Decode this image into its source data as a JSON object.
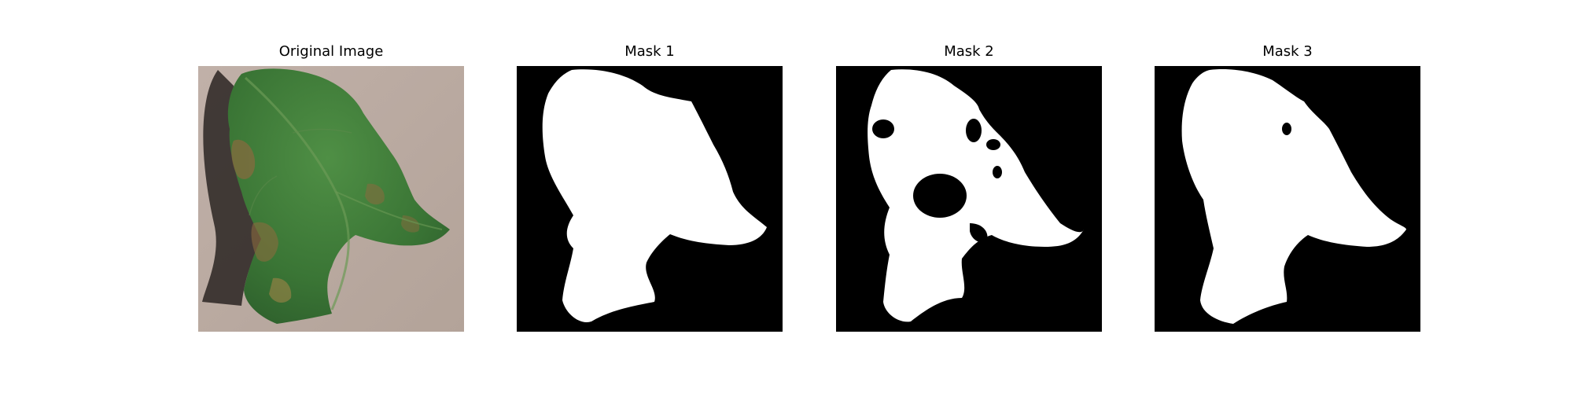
{
  "figure": {
    "panels": [
      {
        "title": "Original Image",
        "kind": "photo",
        "subject": "leaf"
      },
      {
        "title": "Mask 1",
        "kind": "binary-mask"
      },
      {
        "title": "Mask 2",
        "kind": "binary-mask"
      },
      {
        "title": "Mask 3",
        "kind": "binary-mask"
      }
    ],
    "colors": {
      "mask_foreground": "#ffffff",
      "mask_background": "#000000",
      "photo_background": "#b7a79e",
      "leaf_green": "#3f7d3a",
      "leaf_dark_green": "#2b5a2a",
      "lesion_brown": "#8a6a3e"
    }
  }
}
